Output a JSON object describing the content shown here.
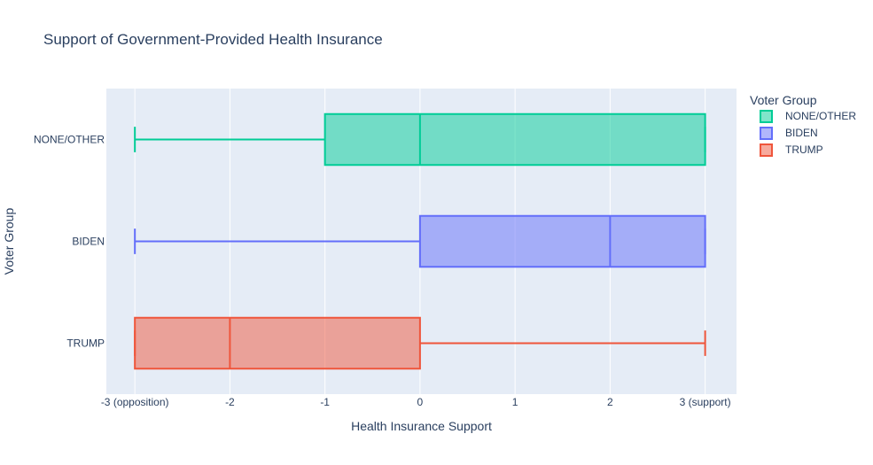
{
  "chart_data": {
    "type": "box",
    "orientation": "horizontal",
    "title": "Support of Government-Provided Health Insurance",
    "xlabel": "Health Insurance Support",
    "ylabel": "Voter Group",
    "xlim": [
      -3.3,
      3.33
    ],
    "x_ticks": [
      {
        "value": -3,
        "label": "-3 (opposition)"
      },
      {
        "value": -2,
        "label": "-2"
      },
      {
        "value": -1,
        "label": "-1"
      },
      {
        "value": 0,
        "label": "0"
      },
      {
        "value": 1,
        "label": "1"
      },
      {
        "value": 2,
        "label": "2"
      },
      {
        "value": 3,
        "label": "3 (support)"
      }
    ],
    "grid": true,
    "legend": {
      "title": "Voter Group",
      "placement": "top-right outside"
    },
    "categories": [
      "TRUMP",
      "BIDEN",
      "NONE/OTHER"
    ],
    "series": [
      {
        "name": "NONE/OTHER",
        "category": "NONE/OTHER",
        "color": "#00cc96",
        "min": -3,
        "q1": -1,
        "median": 0,
        "q3": 3,
        "max": 3
      },
      {
        "name": "BIDEN",
        "category": "BIDEN",
        "color": "#636efa",
        "min": -3,
        "q1": 0,
        "median": 2,
        "q3": 3,
        "max": 3
      },
      {
        "name": "TRUMP",
        "category": "TRUMP",
        "color": "#ef553b",
        "min": -3,
        "q1": -3,
        "median": -2,
        "q3": 0,
        "max": 3
      }
    ],
    "plot_background": "#e5ecf6",
    "grid_color": "#ffffff"
  }
}
